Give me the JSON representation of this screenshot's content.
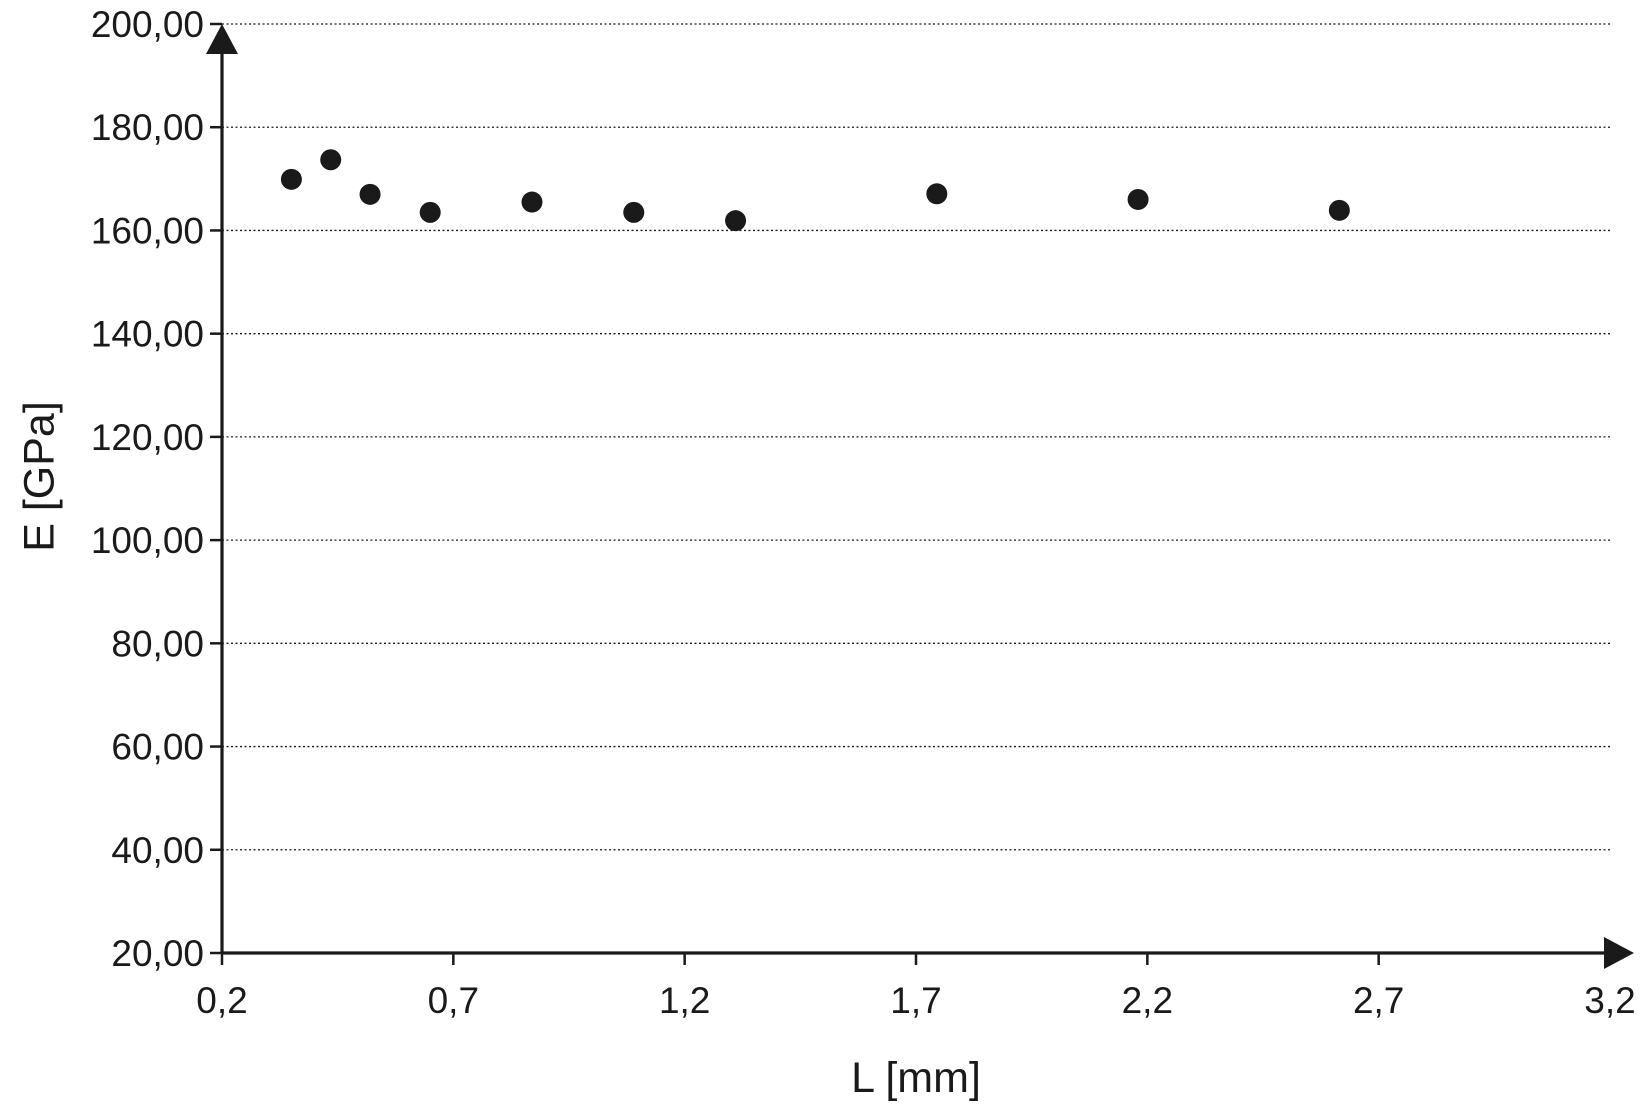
{
  "chart_data": {
    "type": "scatter",
    "xlabel": "L [mm]",
    "ylabel": "E [GPa]",
    "xlim": [
      0.2,
      3.2
    ],
    "ylim": [
      20,
      200
    ],
    "x_ticks": [
      0.2,
      0.7,
      1.2,
      1.7,
      2.2,
      2.7,
      3.2
    ],
    "x_tick_labels": [
      "0,2",
      "0,7",
      "1,2",
      "1,7",
      "2,2",
      "2,7",
      "3,2"
    ],
    "y_ticks": [
      20,
      40,
      60,
      80,
      100,
      120,
      140,
      160,
      180,
      200
    ],
    "y_tick_labels": [
      "20,00",
      "40,00",
      "60,00",
      "80,00",
      "100,00",
      "120,00",
      "140,00",
      "160,00",
      "180,00",
      "200,00"
    ],
    "grid": "horizontal dotted",
    "series": [
      {
        "points": [
          {
            "x": 0.35,
            "y": 169.9
          },
          {
            "x": 0.435,
            "y": 173.7
          },
          {
            "x": 0.52,
            "y": 167.0
          },
          {
            "x": 0.65,
            "y": 163.5
          },
          {
            "x": 0.87,
            "y": 165.5
          },
          {
            "x": 1.09,
            "y": 163.5
          },
          {
            "x": 1.31,
            "y": 161.9
          },
          {
            "x": 1.745,
            "y": 167.1
          },
          {
            "x": 2.18,
            "y": 166.0
          },
          {
            "x": 2.615,
            "y": 163.9
          }
        ],
        "color": "#1a1a1a"
      }
    ]
  }
}
